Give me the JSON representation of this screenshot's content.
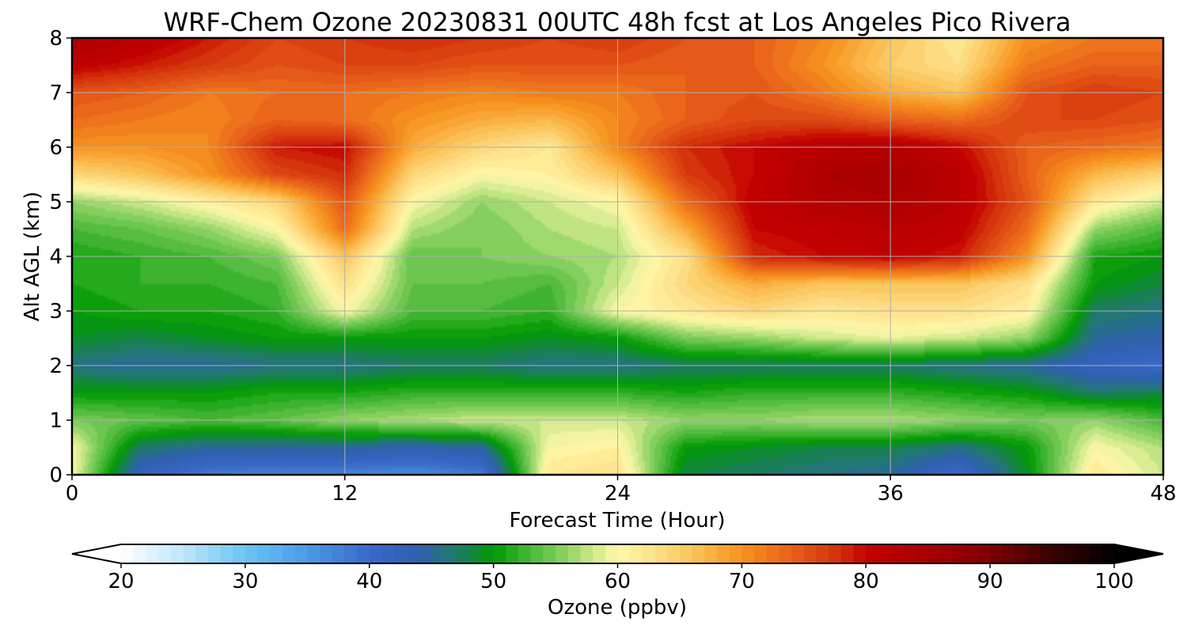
{
  "chart_data": {
    "type": "heatmap",
    "title": "WRF-Chem Ozone  20230831 00UTC 48h fcst at Los Angeles Pico Rivera",
    "xlabel": "Forecast Time (Hour)",
    "ylabel": "Alt AGL (km)",
    "xlim": [
      0,
      48
    ],
    "ylim": [
      0,
      8
    ],
    "xticks": [
      0,
      12,
      24,
      36,
      48
    ],
    "yticks": [
      0,
      1,
      2,
      3,
      4,
      5,
      6,
      7,
      8
    ],
    "grid": true,
    "x": [
      0,
      3,
      6,
      9,
      12,
      15,
      18,
      21,
      24,
      27,
      30,
      33,
      36,
      39,
      42,
      45,
      48
    ],
    "y": [
      0,
      0.5,
      1,
      1.5,
      2,
      2.5,
      3,
      3.5,
      4,
      4.5,
      5,
      5.5,
      6,
      6.5,
      7,
      7.5,
      8
    ],
    "z": [
      [
        60,
        42,
        38,
        37,
        37,
        36,
        38,
        62,
        63,
        48,
        47,
        46,
        45,
        40,
        49,
        62,
        58
      ],
      [
        60,
        47,
        45,
        45,
        45,
        44,
        45,
        60,
        61,
        50,
        49,
        48,
        48,
        46,
        50,
        60,
        57
      ],
      [
        55,
        54,
        53,
        54,
        56,
        57,
        58,
        58,
        58,
        56,
        56,
        57,
        57,
        56,
        55,
        56,
        53
      ],
      [
        50,
        50,
        50,
        51,
        51,
        52,
        52,
        52,
        52,
        51,
        52,
        52,
        52,
        51,
        50,
        47,
        48
      ],
      [
        46,
        45,
        45,
        46,
        46,
        47,
        47,
        46,
        46,
        47,
        47,
        47,
        47,
        46,
        45,
        42,
        40
      ],
      [
        49,
        48,
        49,
        50,
        50,
        50,
        50,
        49,
        50,
        55,
        56,
        58,
        59,
        58,
        56,
        45,
        44
      ],
      [
        50,
        51,
        51,
        52,
        60,
        53,
        53,
        52,
        60,
        62,
        64,
        62,
        63,
        63,
        61,
        47,
        46
      ],
      [
        51,
        52,
        52,
        53,
        63,
        54,
        54,
        53,
        58,
        64,
        68,
        66,
        66,
        66,
        63,
        50,
        48
      ],
      [
        51,
        52,
        53,
        55,
        66,
        54,
        55,
        56,
        57,
        63,
        78,
        80,
        81,
        79,
        70,
        51,
        50
      ],
      [
        53,
        54,
        56,
        60,
        73,
        57,
        55,
        57,
        58,
        68,
        80,
        81,
        82,
        81,
        73,
        56,
        53
      ],
      [
        56,
        58,
        61,
        64,
        75,
        60,
        56,
        58,
        60,
        73,
        81,
        83,
        84,
        82,
        75,
        62,
        58
      ],
      [
        64,
        66,
        70,
        76,
        78,
        64,
        60,
        61,
        66,
        77,
        80,
        84,
        85,
        82,
        74,
        67,
        64
      ],
      [
        70,
        70,
        71,
        79,
        80,
        68,
        64,
        62,
        71,
        78,
        80,
        82,
        83,
        80,
        74,
        73,
        72
      ],
      [
        73,
        72,
        71,
        74,
        73,
        70,
        68,
        67,
        71,
        74,
        76,
        76,
        74,
        73,
        76,
        76,
        75
      ],
      [
        75,
        74,
        72,
        73,
        73,
        72,
        71,
        72,
        72,
        74,
        75,
        72,
        68,
        66,
        75,
        77,
        76
      ],
      [
        81,
        79,
        77,
        75,
        76,
        76,
        75,
        75,
        75,
        74,
        74,
        70,
        65,
        63,
        72,
        74,
        74
      ],
      [
        84,
        82,
        79,
        76,
        77,
        78,
        77,
        76,
        77,
        75,
        74,
        71,
        66,
        62,
        70,
        72,
        72
      ]
    ],
    "colorbar": {
      "label": "Ozone  (ppbv)",
      "min": 20,
      "max": 100,
      "ticks": [
        20,
        30,
        40,
        50,
        60,
        70,
        80,
        90,
        100
      ],
      "extend": "both",
      "stops": [
        {
          "v": 20,
          "c": "#ffffff"
        },
        {
          "v": 25,
          "c": "#bfe6fa"
        },
        {
          "v": 30,
          "c": "#6bc4f3"
        },
        {
          "v": 35,
          "c": "#4a9be6"
        },
        {
          "v": 40,
          "c": "#3a68c8"
        },
        {
          "v": 44,
          "c": "#2f60b0"
        },
        {
          "v": 47,
          "c": "#1f7a6a"
        },
        {
          "v": 50,
          "c": "#009a00"
        },
        {
          "v": 53,
          "c": "#4ab83a"
        },
        {
          "v": 56,
          "c": "#8fd464"
        },
        {
          "v": 58,
          "c": "#cfe98a"
        },
        {
          "v": 60,
          "c": "#fef8a8"
        },
        {
          "v": 63,
          "c": "#fde08a"
        },
        {
          "v": 66,
          "c": "#fbc45a"
        },
        {
          "v": 70,
          "c": "#f7931e"
        },
        {
          "v": 74,
          "c": "#e8601a"
        },
        {
          "v": 78,
          "c": "#d22e0a"
        },
        {
          "v": 80,
          "c": "#c40000"
        },
        {
          "v": 85,
          "c": "#a80000"
        },
        {
          "v": 90,
          "c": "#800000"
        },
        {
          "v": 95,
          "c": "#3a0000"
        },
        {
          "v": 100,
          "c": "#000000"
        }
      ]
    }
  }
}
